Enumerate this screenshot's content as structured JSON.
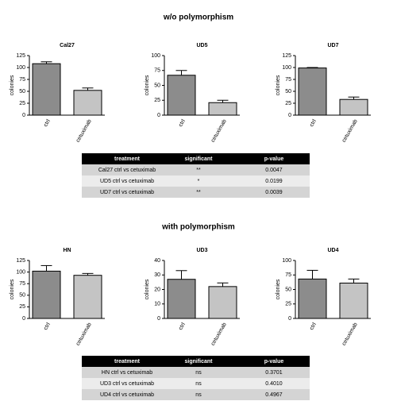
{
  "sections": [
    {
      "title": "w/o polymorphism",
      "table": {
        "columns": [
          "treatment",
          "significant",
          "p-value"
        ],
        "rows": [
          [
            "Cal27  ctrl  vs cetuximab",
            "**",
            "0.0047"
          ],
          [
            "UD5 ctrl vs cetuximab",
            "*",
            "0.0199"
          ],
          [
            "UD7 ctrl vs cetuximab",
            "**",
            "0.0039"
          ]
        ]
      }
    },
    {
      "title": "with polymorphism",
      "table": {
        "columns": [
          "treatment",
          "significant",
          "p-value"
        ],
        "rows": [
          [
            "HN ctrl vs cetuximab",
            "ns",
            "0.3701"
          ],
          [
            "UD3 ctrl  vs cetuximab",
            "ns",
            "0.4010"
          ],
          [
            "UD4 ctrl vs cetuximab",
            "ns",
            "0.4967"
          ]
        ]
      }
    }
  ],
  "chart_data": [
    {
      "type": "bar",
      "title": "Cal27",
      "ylabel": "colonies",
      "categories": [
        "ctrl",
        "cetuximab"
      ],
      "values": [
        108,
        52
      ],
      "errors": [
        4,
        5
      ],
      "colors": [
        "#8c8c8c",
        "#c4c4c4"
      ],
      "ylim": [
        0,
        125
      ],
      "yticks": [
        0,
        25,
        50,
        75,
        100,
        125
      ]
    },
    {
      "type": "bar",
      "title": "UD5",
      "ylabel": "colonies",
      "categories": [
        "ctrl",
        "cetuximab"
      ],
      "values": [
        67,
        21
      ],
      "errors": [
        8,
        4
      ],
      "colors": [
        "#8c8c8c",
        "#c4c4c4"
      ],
      "ylim": [
        0,
        100
      ],
      "yticks": [
        0,
        25,
        50,
        75,
        100
      ]
    },
    {
      "type": "bar",
      "title": "UD7",
      "ylabel": "colonies",
      "categories": [
        "ctrl",
        "cetuximab"
      ],
      "values": [
        99,
        33
      ],
      "errors": [
        1,
        5
      ],
      "colors": [
        "#8c8c8c",
        "#c4c4c4"
      ],
      "ylim": [
        0,
        125
      ],
      "yticks": [
        0,
        25,
        50,
        75,
        100,
        125
      ]
    },
    {
      "type": "bar",
      "title": "HN",
      "ylabel": "colonies",
      "categories": [
        "ctrl",
        "cetuximab"
      ],
      "values": [
        102,
        93
      ],
      "errors": [
        12,
        4
      ],
      "colors": [
        "#8c8c8c",
        "#c4c4c4"
      ],
      "ylim": [
        0,
        125
      ],
      "yticks": [
        0,
        25,
        50,
        75,
        100,
        125
      ]
    },
    {
      "type": "bar",
      "title": "UD3",
      "ylabel": "colonies",
      "categories": [
        "ctrl",
        "cetuximab"
      ],
      "values": [
        27,
        22
      ],
      "errors": [
        6,
        2.5
      ],
      "colors": [
        "#8c8c8c",
        "#c4c4c4"
      ],
      "ylim": [
        0,
        40
      ],
      "yticks": [
        0,
        10,
        20,
        30,
        40
      ]
    },
    {
      "type": "bar",
      "title": "UD4",
      "ylabel": "colonies",
      "categories": [
        "ctrl",
        "cetuximab"
      ],
      "values": [
        68,
        61
      ],
      "errors": [
        15,
        7
      ],
      "colors": [
        "#8c8c8c",
        "#c4c4c4"
      ],
      "ylim": [
        0,
        100
      ],
      "yticks": [
        0,
        25,
        50,
        75,
        100
      ]
    }
  ]
}
